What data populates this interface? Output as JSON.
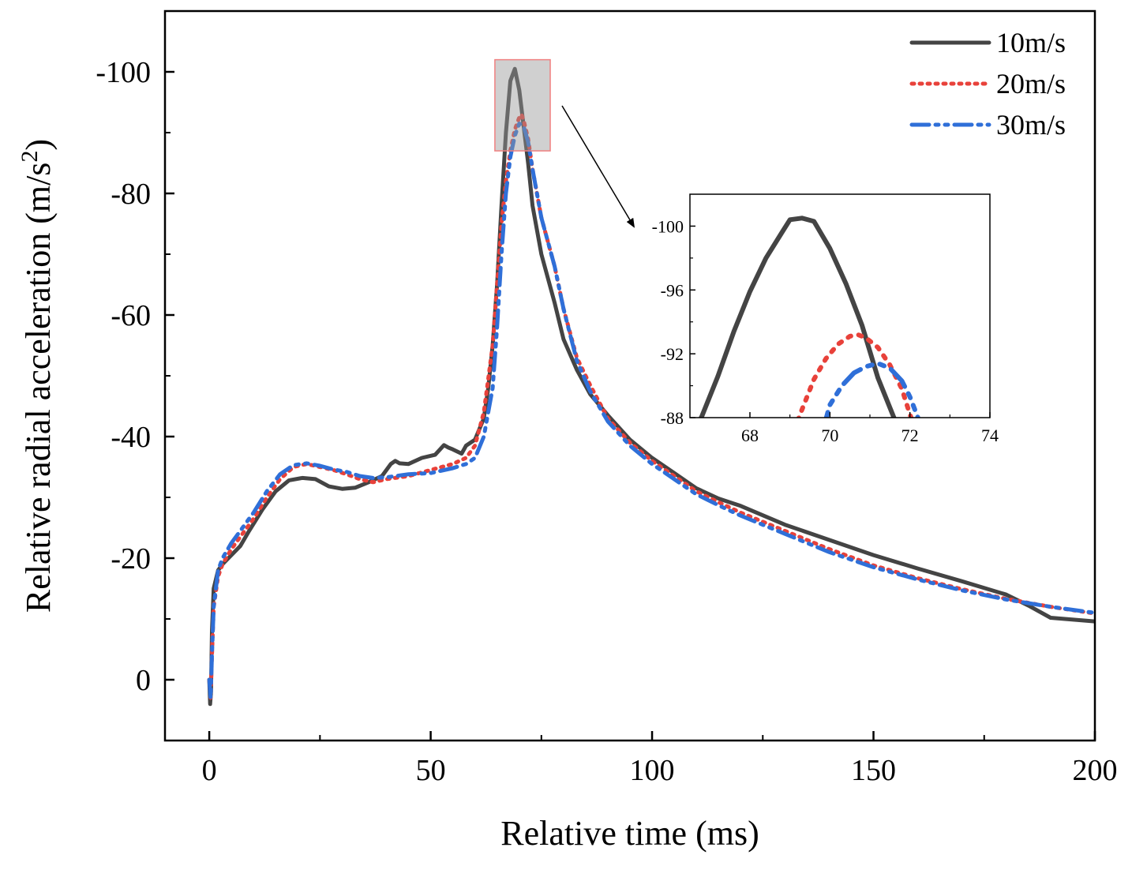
{
  "chart_data": {
    "type": "line",
    "xlabel": "Relative time (ms)",
    "ylabel": "Relative radial acceleration (m/s",
    "ylabel_sup": "2",
    "ylabel_close": ")",
    "xlim": [
      -10,
      200
    ],
    "ylim": [
      10,
      -110
    ],
    "xticks": [
      0,
      50,
      100,
      150,
      200
    ],
    "xtick_labels": [
      "0",
      "50",
      "100",
      "150",
      "200"
    ],
    "yticks": [
      0,
      -20,
      -40,
      -60,
      -80,
      -100
    ],
    "ytick_labels": [
      "0",
      "-20",
      "-40",
      "-60",
      "-80",
      "-100"
    ],
    "legend_position": "top-right",
    "series": [
      {
        "name": "10m/s",
        "color": "#444444",
        "style": "solid",
        "x": [
          0,
          0.2,
          0.4,
          0.6,
          1,
          2,
          3,
          5,
          7,
          9,
          12,
          15,
          18,
          21,
          24,
          27,
          30,
          33,
          36,
          39,
          41,
          42,
          43,
          45,
          48,
          51,
          53,
          54,
          55,
          57,
          58,
          60,
          62,
          63,
          64,
          65,
          66,
          67,
          68,
          69,
          70,
          71,
          72,
          73,
          75,
          78,
          80,
          83,
          86,
          90,
          95,
          100,
          105,
          110,
          115,
          120,
          130,
          140,
          150,
          160,
          170,
          180,
          185,
          190,
          200
        ],
        "y": [
          0,
          4,
          2,
          -8,
          -15,
          -18,
          -19,
          -20.5,
          -22,
          -24.5,
          -28,
          -31,
          -32.8,
          -33.2,
          -33,
          -31.8,
          -31.4,
          -31.6,
          -32.5,
          -33.5,
          -35.5,
          -36,
          -35.6,
          -35.5,
          -36.5,
          -37,
          -38.6,
          -38.2,
          -37.9,
          -37.2,
          -38.5,
          -39.5,
          -43,
          -48,
          -55,
          -65,
          -78,
          -90,
          -98.5,
          -100.5,
          -97,
          -91,
          -85,
          -78,
          -70,
          -62,
          -56,
          -51,
          -47,
          -43.5,
          -39.5,
          -36.5,
          -34,
          -31.5,
          -29.8,
          -28.6,
          -25.5,
          -23,
          -20.5,
          -18.3,
          -16.2,
          -14,
          -12.2,
          -10.2,
          -9.6
        ]
      },
      {
        "name": "20m/s",
        "color": "#e8413a",
        "style": "dotted",
        "x": [
          0,
          0.3,
          0.6,
          1,
          2,
          3,
          5,
          7,
          10,
          13,
          16,
          19,
          22,
          25,
          28,
          31,
          34,
          37,
          40,
          45,
          50,
          55,
          58,
          60,
          62,
          64,
          65,
          66,
          67,
          68,
          69,
          70,
          70.5,
          71,
          72,
          73,
          75,
          78,
          80,
          83,
          86,
          90,
          95,
          100,
          105,
          110,
          115,
          120,
          130,
          140,
          150,
          160,
          170,
          180,
          190,
          200
        ],
        "y": [
          0,
          3,
          -4,
          -12,
          -17,
          -19,
          -21.5,
          -23.5,
          -26.5,
          -30,
          -33,
          -35,
          -35.5,
          -35,
          -34.5,
          -33.8,
          -33,
          -32.5,
          -33,
          -33.5,
          -34.5,
          -35.5,
          -36.5,
          -38.5,
          -44,
          -55,
          -65,
          -75,
          -82,
          -87,
          -90.5,
          -92.5,
          -93,
          -92,
          -89,
          -84,
          -76,
          -68,
          -61,
          -53,
          -48.5,
          -43,
          -39,
          -36,
          -33.5,
          -31,
          -29.2,
          -27.5,
          -24.5,
          -21.5,
          -18.8,
          -16.7,
          -14.9,
          -13.3,
          -12,
          -10.9
        ]
      },
      {
        "name": "30m/s",
        "color": "#2f6fd8",
        "style": "dashdotdot",
        "x": [
          0,
          0.3,
          0.6,
          1,
          2,
          3,
          5,
          7,
          10,
          13,
          16,
          19,
          22,
          25,
          28,
          31,
          34,
          37,
          40,
          45,
          50,
          55,
          58,
          60,
          62,
          64,
          65,
          66,
          67,
          68,
          69,
          70,
          71,
          72,
          73,
          75,
          78,
          80,
          83,
          86,
          90,
          95,
          100,
          105,
          110,
          115,
          120,
          130,
          140,
          150,
          160,
          170,
          180,
          190,
          200
        ],
        "y": [
          0,
          3,
          -4,
          -12,
          -18,
          -20,
          -22.5,
          -24.5,
          -27.5,
          -31,
          -33.8,
          -35.3,
          -35.6,
          -35.2,
          -34.6,
          -34.2,
          -33.5,
          -33.2,
          -33.3,
          -33.8,
          -34,
          -34.8,
          -35.5,
          -36.5,
          -40,
          -48,
          -58,
          -70,
          -80,
          -86,
          -89.5,
          -91.5,
          -91,
          -88.5,
          -84,
          -76,
          -68,
          -61,
          -52.5,
          -47.5,
          -42.5,
          -38.5,
          -35.5,
          -33,
          -30.5,
          -28.7,
          -27,
          -24,
          -21,
          -18.5,
          -16.5,
          -14.7,
          -13.2,
          -12,
          -11
        ]
      }
    ],
    "inset": {
      "xlim": [
        66.5,
        74
      ],
      "ylim": [
        -88,
        -102
      ],
      "xticks": [
        68,
        70,
        72,
        74
      ],
      "xtick_labels": [
        "68",
        "70",
        "72",
        "74"
      ],
      "yticks": [
        -88,
        -92,
        -96,
        -100
      ],
      "ytick_labels": [
        "-88",
        "-92",
        "-96",
        "-100"
      ],
      "highlight_box": {
        "x": [
          64.5,
          77
        ],
        "y": [
          -87,
          -102
        ]
      },
      "series": [
        {
          "name": "10m/s",
          "x": [
            66.4,
            66.8,
            67.2,
            67.6,
            68.0,
            68.4,
            68.8,
            69.0,
            69.3,
            69.6,
            70.0,
            70.4,
            70.8,
            71.2,
            71.6,
            72.0
          ],
          "y": [
            -86.0,
            -88.1,
            -90.6,
            -93.4,
            -95.9,
            -98.0,
            -99.6,
            -100.4,
            -100.5,
            -100.3,
            -98.6,
            -96.4,
            -93.8,
            -90.5,
            -88.0,
            -85.5
          ]
        },
        {
          "name": "20m/s",
          "x": [
            69.0,
            69.3,
            69.6,
            69.9,
            70.2,
            70.5,
            70.7,
            70.9,
            71.2,
            71.5,
            71.8,
            72.0,
            72.2
          ],
          "y": [
            -86.5,
            -88.5,
            -90.4,
            -91.7,
            -92.6,
            -93.1,
            -93.2,
            -93.0,
            -92.4,
            -91.3,
            -89.8,
            -88.2,
            -86.8
          ]
        },
        {
          "name": "30m/s",
          "x": [
            69.8,
            70.0,
            70.3,
            70.6,
            70.9,
            71.2,
            71.5,
            71.8,
            72.0,
            72.2
          ],
          "y": [
            -87.0,
            -88.8,
            -90.0,
            -90.8,
            -91.2,
            -91.4,
            -91.1,
            -90.3,
            -89.3,
            -88.0
          ]
        }
      ]
    }
  }
}
